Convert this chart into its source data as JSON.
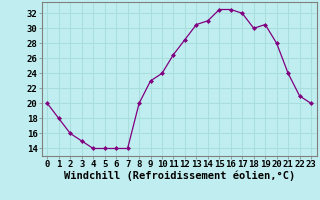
{
  "x": [
    0,
    1,
    2,
    3,
    4,
    5,
    6,
    7,
    8,
    9,
    10,
    11,
    12,
    13,
    14,
    15,
    16,
    17,
    18,
    19,
    20,
    21,
    22,
    23
  ],
  "y": [
    20,
    18,
    16,
    15,
    14,
    14,
    14,
    14,
    20,
    23,
    24,
    26.5,
    28.5,
    30.5,
    31,
    32.5,
    32.5,
    32,
    30,
    30.5,
    28,
    24,
    21,
    20
  ],
  "line_color": "#800080",
  "marker_color": "#800080",
  "bg_color": "#c0eef0",
  "grid_color": "#aadddd",
  "xlabel": "Windchill (Refroidissement éolien,°C)",
  "ylim": [
    13,
    33.5
  ],
  "xlim": [
    -0.5,
    23.5
  ],
  "yticks": [
    14,
    16,
    18,
    20,
    22,
    24,
    26,
    28,
    30,
    32
  ],
  "xticks": [
    0,
    1,
    2,
    3,
    4,
    5,
    6,
    7,
    8,
    9,
    10,
    11,
    12,
    13,
    14,
    15,
    16,
    17,
    18,
    19,
    20,
    21,
    22,
    23
  ],
  "tick_label_fontsize": 6.5,
  "xlabel_fontsize": 7.5
}
